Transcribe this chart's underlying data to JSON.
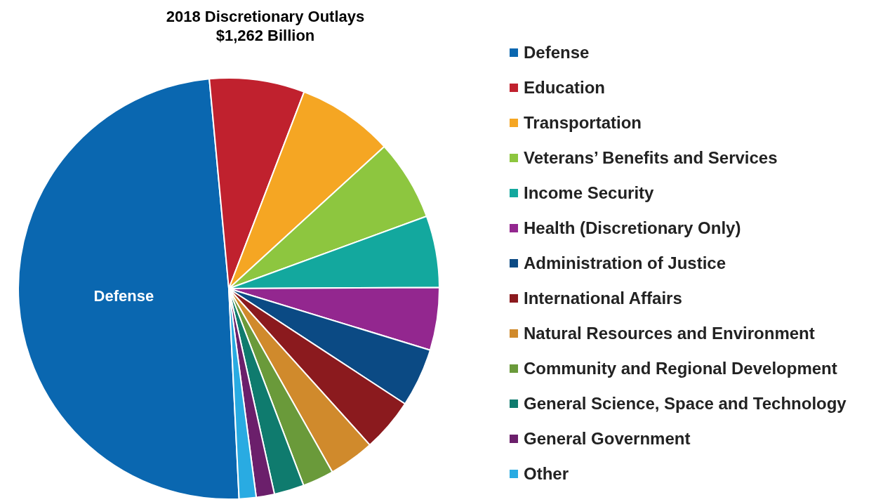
{
  "chart_data": {
    "type": "pie",
    "title": "2018 Discretionary Outlays\n$1,262 Billion",
    "categories": [
      "Defense",
      "Education",
      "Transportation",
      "Veterans’ Benefits and Services",
      "Income Security",
      "Health (Discretionary Only)",
      "Administration of Justice",
      "International Affairs",
      "Natural Resources and Environment",
      "Community and Regional Development",
      "General Science, Space and Technology",
      "General Government",
      "Other"
    ],
    "values": [
      49.3,
      7.3,
      7.4,
      6.2,
      5.5,
      4.8,
      4.5,
      4.1,
      3.5,
      2.4,
      2.3,
      1.4,
      1.3
    ],
    "colors": [
      "#0a67b0",
      "#c0212e",
      "#f5a623",
      "#8dc63f",
      "#13a89e",
      "#93278f",
      "#0b4a84",
      "#8b1a1e",
      "#d08a2c",
      "#6a9a3a",
      "#0f7b6e",
      "#6b1f6b",
      "#29abe2"
    ],
    "annotations": [
      {
        "text": "Defense",
        "x": "Defense"
      }
    ],
    "legend": "right"
  }
}
